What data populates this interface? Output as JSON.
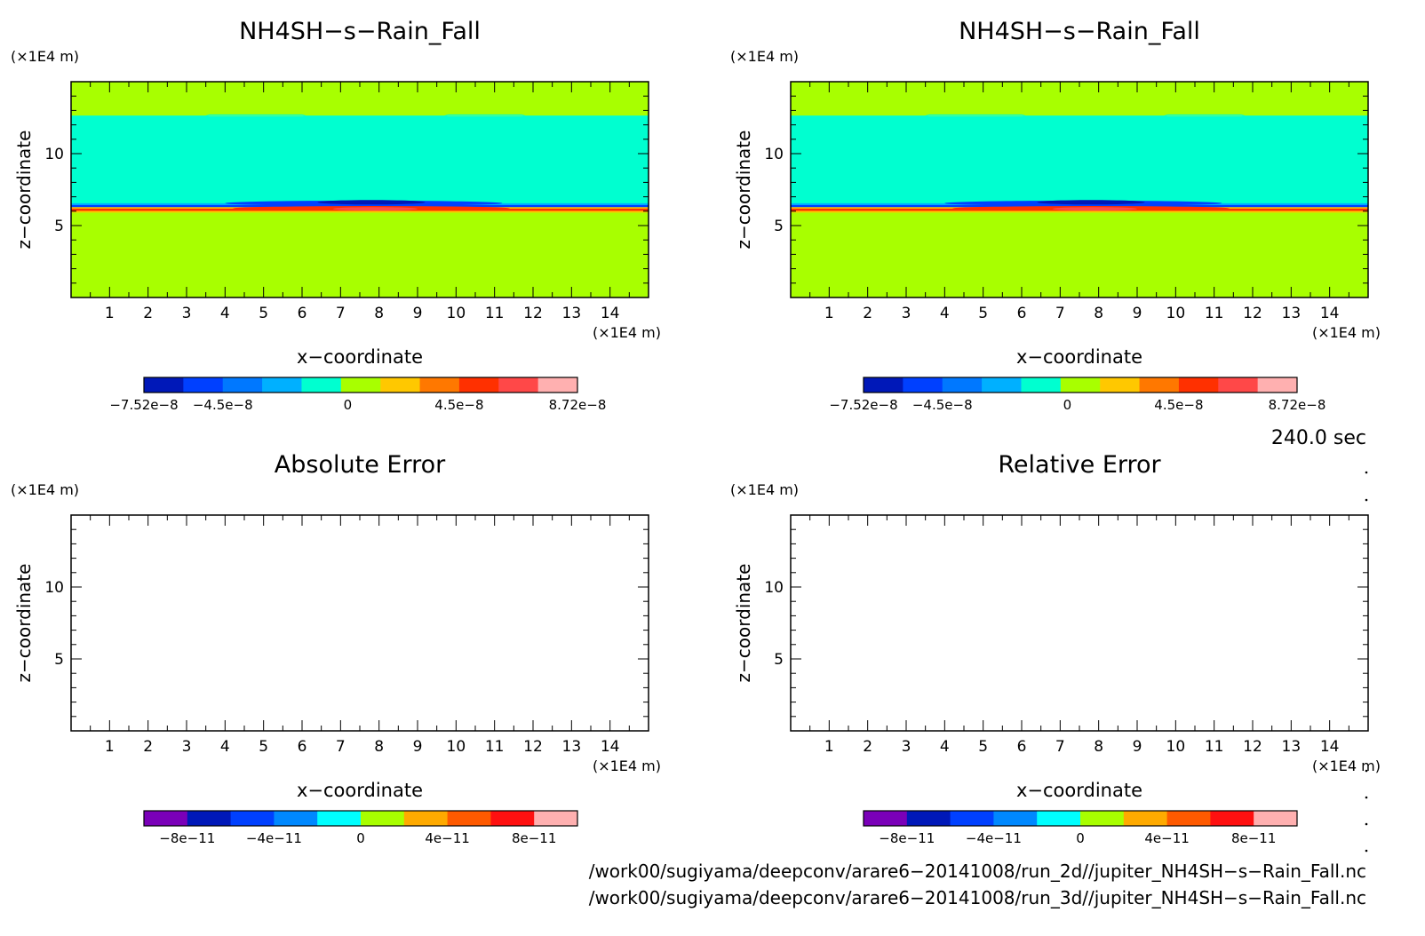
{
  "panels": [
    {
      "id": "p1",
      "title": "NH4SH−s−Rain_Fall",
      "xlabel": "x−coordinate",
      "ylabel": "z−coordinate",
      "xunit": "(×1E4 m)",
      "yunit": "(×1E4 m)",
      "filled": true,
      "colorbar": {
        "colors": [
          "#0018b8",
          "#0040ff",
          "#0078ff",
          "#00b0ff",
          "#00ffd0",
          "#a8ff00",
          "#ffc800",
          "#ff7800",
          "#ff3000",
          "#ff4848",
          "#ffb0b0"
        ],
        "labels": [
          "−7.52e−8",
          "−4.5e−8",
          "0",
          "4.5e−8",
          "8.72e−8"
        ]
      }
    },
    {
      "id": "p2",
      "title": "NH4SH−s−Rain_Fall",
      "xlabel": "x−coordinate",
      "ylabel": "z−coordinate",
      "xunit": "(×1E4 m)",
      "yunit": "(×1E4 m)",
      "filled": true,
      "colorbar": {
        "colors": [
          "#0018b8",
          "#0040ff",
          "#0078ff",
          "#00b0ff",
          "#00ffd0",
          "#a8ff00",
          "#ffc800",
          "#ff7800",
          "#ff3000",
          "#ff4848",
          "#ffb0b0"
        ],
        "labels": [
          "−7.52e−8",
          "−4.5e−8",
          "0",
          "4.5e−8",
          "8.72e−8"
        ]
      }
    },
    {
      "id": "p3",
      "title": "Absolute Error",
      "xlabel": "x−coordinate",
      "ylabel": "z−coordinate",
      "xunit": "(×1E4 m)",
      "yunit": "(×1E4 m)",
      "filled": false,
      "colorbar": {
        "colors": [
          "#7a00b8",
          "#0018b8",
          "#0040ff",
          "#0088ff",
          "#00ffff",
          "#a8ff00",
          "#ffaa00",
          "#ff5a00",
          "#ff1010",
          "#ffb0b0"
        ],
        "labels": [
          "−8e−11",
          "−4e−11",
          "0",
          "4e−11",
          "8e−11"
        ]
      }
    },
    {
      "id": "p4",
      "title": "Relative Error",
      "xlabel": "x−coordinate",
      "ylabel": "z−coordinate",
      "xunit": "(×1E4 m)",
      "yunit": "(×1E4 m)",
      "filled": false,
      "colorbar": {
        "colors": [
          "#7a00b8",
          "#0018b8",
          "#0040ff",
          "#0088ff",
          "#00ffff",
          "#a8ff00",
          "#ffaa00",
          "#ff5a00",
          "#ff1010",
          "#ffb0b0"
        ],
        "labels": [
          "−8e−11",
          "−4e−11",
          "0",
          "4e−11",
          "8e−11"
        ]
      }
    }
  ],
  "time_label": "240.0 sec",
  "footer": [
    "/work00/sugiyama/deepconv/arare6−20141008/run_2d//jupiter_NH4SH−s−Rain_Fall.nc",
    "/work00/sugiyama/deepconv/arare6−20141008/run_3d//jupiter_NH4SH−s−Rain_Fall.nc"
  ],
  "chart_data": [
    {
      "type": "heatmap",
      "title": "NH4SH−s−Rain_Fall",
      "xlabel": "x−coordinate",
      "ylabel": "z−coordinate",
      "xunit": "(×1E4 m)",
      "yunit": "(×1E4 m)",
      "xlim": [
        0,
        15
      ],
      "ylim": [
        0,
        15
      ],
      "xticks": [
        "1",
        "2",
        "3",
        "4",
        "5",
        "6",
        "7",
        "8",
        "9",
        "10",
        "11",
        "12",
        "13",
        "14"
      ],
      "yticks": [
        "5",
        "10"
      ],
      "colorbar_labels": [
        "−7.52e−8",
        "−4.5e−8",
        "0",
        "4.5e−8",
        "8.72e−8"
      ],
      "bands": [
        {
          "z0": 12.6,
          "z1": 15.0,
          "level": "0 (light green)"
        },
        {
          "z0": 6.5,
          "z1": 12.6,
          "level": "slightly negative (cyan)"
        },
        {
          "z0": 6.3,
          "z1": 6.5,
          "level": "negative (blue)"
        },
        {
          "z0": 6.1,
          "z1": 6.3,
          "level": "positive (orange/red)"
        },
        {
          "z0": 0.0,
          "z1": 6.1,
          "level": "0 (light green)"
        }
      ],
      "extrema": {
        "min": -7.52e-08,
        "max": 8.72e-08,
        "near_x": 7.5,
        "near_z": 6.3
      }
    },
    {
      "type": "heatmap",
      "title": "NH4SH−s−Rain_Fall",
      "xlabel": "x−coordinate",
      "ylabel": "z−coordinate",
      "xunit": "(×1E4 m)",
      "yunit": "(×1E4 m)",
      "xlim": [
        0,
        15
      ],
      "ylim": [
        0,
        15
      ],
      "xticks": [
        "1",
        "2",
        "3",
        "4",
        "5",
        "6",
        "7",
        "8",
        "9",
        "10",
        "11",
        "12",
        "13",
        "14"
      ],
      "yticks": [
        "5",
        "10"
      ],
      "colorbar_labels": [
        "−7.52e−8",
        "−4.5e−8",
        "0",
        "4.5e−8",
        "8.72e−8"
      ],
      "bands": [
        {
          "z0": 12.6,
          "z1": 15.0,
          "level": "0 (light green)"
        },
        {
          "z0": 6.5,
          "z1": 12.6,
          "level": "slightly negative (cyan)"
        },
        {
          "z0": 6.3,
          "z1": 6.5,
          "level": "negative (blue)"
        },
        {
          "z0": 6.1,
          "z1": 6.3,
          "level": "positive (orange/red)"
        },
        {
          "z0": 0.0,
          "z1": 6.1,
          "level": "0 (light green)"
        }
      ],
      "extrema": {
        "min": -7.52e-08,
        "max": 8.72e-08,
        "near_x": 7.5,
        "near_z": 6.3
      }
    },
    {
      "type": "heatmap",
      "title": "Absolute Error",
      "xlabel": "x−coordinate",
      "ylabel": "z−coordinate",
      "xunit": "(×1E4 m)",
      "yunit": "(×1E4 m)",
      "xlim": [
        0,
        15
      ],
      "ylim": [
        0,
        15
      ],
      "xticks": [
        "1",
        "2",
        "3",
        "4",
        "5",
        "6",
        "7",
        "8",
        "9",
        "10",
        "11",
        "12",
        "13",
        "14"
      ],
      "yticks": [
        "5",
        "10"
      ],
      "colorbar_labels": [
        "−8e−11",
        "−4e−11",
        "0",
        "4e−11",
        "8e−11"
      ],
      "bands": []
    },
    {
      "type": "heatmap",
      "title": "Relative Error",
      "xlabel": "x−coordinate",
      "ylabel": "z−coordinate",
      "xunit": "(×1E4 m)",
      "yunit": "(×1E4 m)",
      "xlim": [
        0,
        15
      ],
      "ylim": [
        0,
        15
      ],
      "xticks": [
        "1",
        "2",
        "3",
        "4",
        "5",
        "6",
        "7",
        "8",
        "9",
        "10",
        "11",
        "12",
        "13",
        "14"
      ],
      "yticks": [
        "5",
        "10"
      ],
      "colorbar_labels": [
        "−8e−11",
        "−4e−11",
        "0",
        "4e−11",
        "8e−11"
      ],
      "bands": []
    }
  ]
}
